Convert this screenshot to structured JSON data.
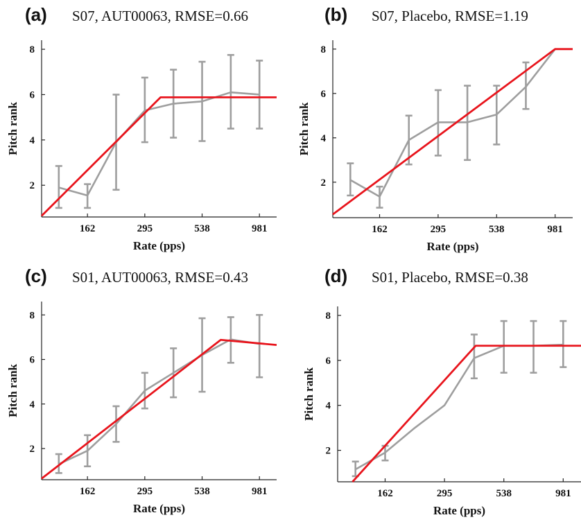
{
  "chart_data": [
    {
      "type": "line",
      "panel_letter": "(a)",
      "title": "S07, AUT00063, RMSE=0.66",
      "xlabel": "Rate (pps)",
      "ylabel": "Pitch rank",
      "x_tick_labels": [
        "162",
        "295",
        "538",
        "981"
      ],
      "y_tick_labels": [
        "2",
        "4",
        "6",
        "8"
      ],
      "ylim": [
        0.6,
        8.4
      ],
      "x_domain": [
        0.4,
        8.6
      ],
      "series": [
        {
          "x": [
            1,
            2,
            3,
            4,
            5,
            6,
            7,
            8
          ],
          "values": [
            1.9,
            1.55,
            3.9,
            5.3,
            5.6,
            5.7,
            6.1,
            6.0
          ],
          "err_low": [
            1.0,
            1.0,
            1.8,
            3.9,
            4.1,
            3.95,
            4.5,
            4.5
          ],
          "err_high": [
            2.85,
            2.05,
            6.0,
            6.75,
            7.1,
            7.45,
            7.75,
            7.5
          ]
        }
      ],
      "fit": {
        "x": [
          0.4,
          4.55,
          8.6
        ],
        "values": [
          0.65,
          5.88,
          5.88
        ]
      }
    },
    {
      "type": "line",
      "panel_letter": "(b)",
      "title": "S07, Placebo, RMSE=1.19",
      "xlabel": "Rate (pps)",
      "ylabel": "Pitch rank",
      "x_tick_labels": [
        "162",
        "295",
        "538",
        "981"
      ],
      "y_tick_labels": [
        "2",
        "4",
        "6",
        "8"
      ],
      "ylim": [
        0.4,
        8.4
      ],
      "x_domain": [
        0.4,
        8.6
      ],
      "series": [
        {
          "x": [
            1,
            2,
            3,
            4,
            5,
            6,
            7,
            8
          ],
          "values": [
            2.1,
            1.35,
            3.9,
            4.7,
            4.7,
            5.05,
            6.3,
            8.0
          ],
          "err_low": [
            1.4,
            0.85,
            2.8,
            3.2,
            3.0,
            3.7,
            5.3,
            8.0
          ],
          "err_high": [
            2.85,
            1.8,
            5.0,
            6.15,
            6.35,
            6.35,
            7.4,
            8.0
          ]
        }
      ],
      "fit": {
        "x": [
          0.4,
          8.0,
          8.6
        ],
        "values": [
          0.55,
          8.0,
          8.0
        ]
      }
    },
    {
      "type": "line",
      "panel_letter": "(c)",
      "title": "S01, AUT00063, RMSE=0.43",
      "xlabel": "Rate (pps)",
      "ylabel": "Pitch rank",
      "x_tick_labels": [
        "162",
        "295",
        "538",
        "981"
      ],
      "y_tick_labels": [
        "2",
        "4",
        "6",
        "8"
      ],
      "ylim": [
        0.6,
        8.6
      ],
      "x_domain": [
        0.4,
        8.6
      ],
      "series": [
        {
          "x": [
            1,
            2,
            3,
            4,
            5,
            6,
            7,
            8
          ],
          "values": [
            1.3,
            1.9,
            3.1,
            4.6,
            5.4,
            6.2,
            6.9,
            6.7
          ],
          "err_low": [
            0.9,
            1.2,
            2.3,
            3.8,
            4.3,
            4.55,
            5.85,
            5.2
          ],
          "err_high": [
            1.75,
            2.6,
            3.9,
            5.4,
            6.5,
            7.85,
            7.9,
            8.0
          ]
        }
      ],
      "fit": {
        "x": [
          0.4,
          6.65,
          8.6
        ],
        "values": [
          0.65,
          6.88,
          6.65
        ]
      }
    },
    {
      "type": "line",
      "panel_letter": "(d)",
      "title": "S01, Placebo, RMSE=0.38",
      "xlabel": "Rate (pps)",
      "ylabel": "Pitch rank",
      "x_tick_labels": [
        "162",
        "295",
        "538",
        "981"
      ],
      "y_tick_labels": [
        "2",
        "4",
        "6",
        "8"
      ],
      "ylim": [
        0.6,
        8.4
      ],
      "x_domain": [
        0.4,
        8.6
      ],
      "series": [
        {
          "x": [
            1,
            2,
            3,
            4,
            5,
            6,
            7,
            8
          ],
          "values": [
            1.15,
            1.9,
            3.0,
            4.0,
            6.1,
            6.65,
            6.65,
            6.7
          ],
          "err_low": [
            0.85,
            1.55,
            3.0,
            4.0,
            5.2,
            5.45,
            5.45,
            5.7
          ],
          "err_high": [
            1.5,
            2.2,
            3.0,
            4.0,
            7.15,
            7.75,
            7.75,
            7.75
          ]
        }
      ],
      "fit": {
        "x": [
          0.9,
          5.05,
          8.6
        ],
        "values": [
          0.6,
          6.65,
          6.65
        ]
      }
    }
  ]
}
